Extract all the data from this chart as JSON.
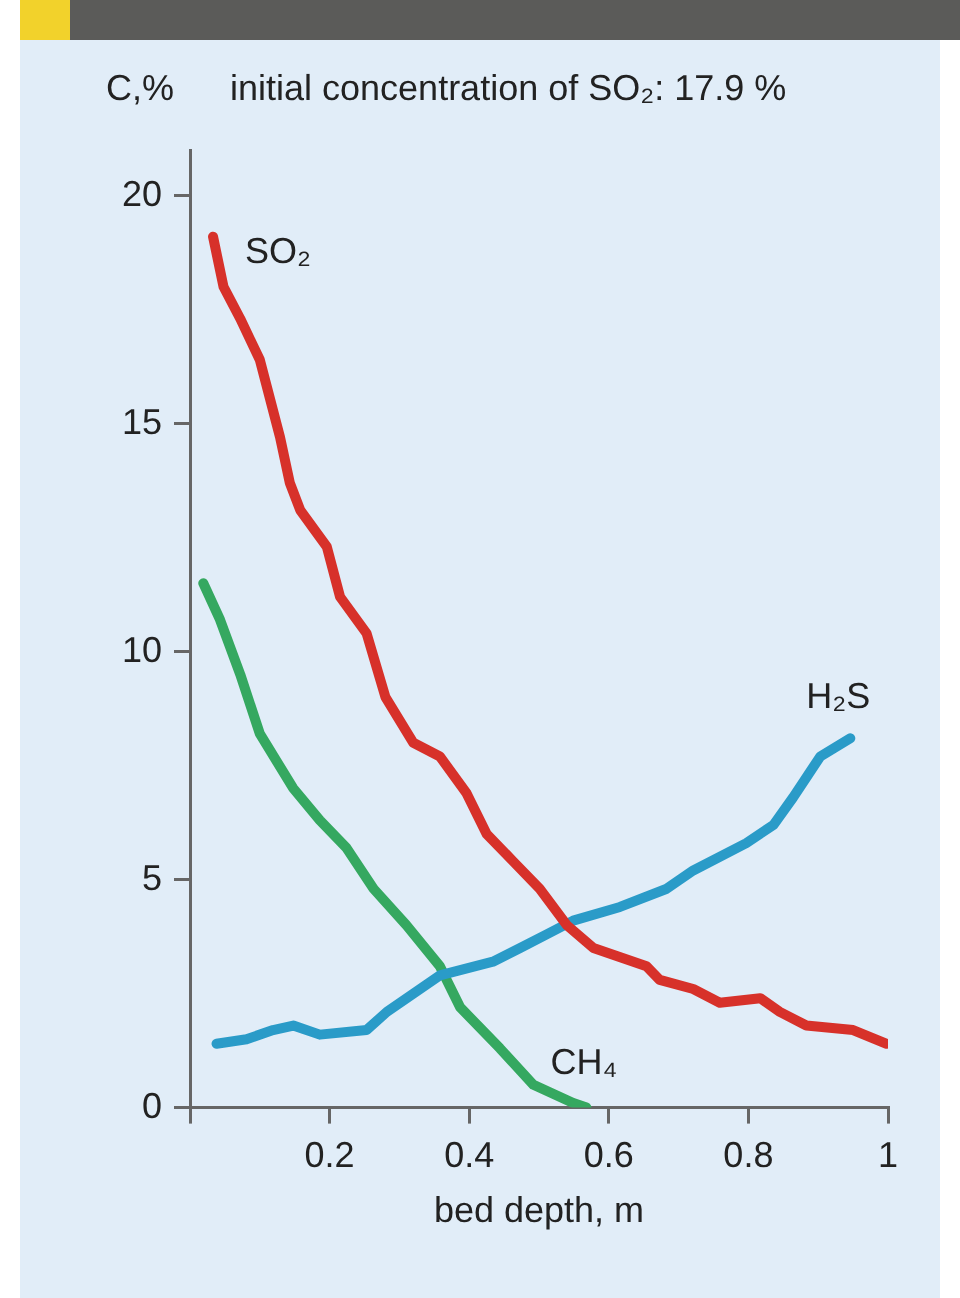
{
  "chart_data": {
    "type": "line",
    "xlabel": "bed depth, m",
    "ylabel": "C,%",
    "annotations": [
      "initial concentration of SO₂: 17.9 %"
    ],
    "xlim": [
      0,
      1
    ],
    "ylim": [
      0,
      21
    ],
    "xticks": [
      {
        "value": 0,
        "label": null
      },
      0.2,
      0.4,
      0.6,
      0.8,
      1
    ],
    "yticks": [
      0,
      5,
      10,
      15,
      20
    ],
    "grid": false,
    "legend": false,
    "marker": "none",
    "line_style": "solid",
    "series": [
      {
        "name": "SO₂",
        "color": "#d7312a",
        "x": [
          0.033,
          0.048,
          0.072,
          0.1,
          0.129,
          0.143,
          0.158,
          0.196,
          0.215,
          0.253,
          0.28,
          0.32,
          0.358,
          0.396,
          0.425,
          0.463,
          0.501,
          0.54,
          0.578,
          0.654,
          0.673,
          0.721,
          0.759,
          0.817,
          0.845,
          0.883,
          0.95,
          0.998
        ],
        "values": [
          19.1,
          18.0,
          17.3,
          16.4,
          14.7,
          13.7,
          13.1,
          12.3,
          11.2,
          10.4,
          9.0,
          8.0,
          7.7,
          6.9,
          6.0,
          5.4,
          4.8,
          4.0,
          3.5,
          3.1,
          2.8,
          2.6,
          2.3,
          2.4,
          2.1,
          1.8,
          1.7,
          1.4
        ]
      },
      {
        "name": "H₂S",
        "color": "#2a9bc8",
        "x": [
          0.038,
          0.081,
          0.119,
          0.148,
          0.186,
          0.253,
          0.282,
          0.32,
          0.358,
          0.434,
          0.473,
          0.511,
          0.549,
          0.616,
          0.683,
          0.721,
          0.797,
          0.836,
          0.864,
          0.903,
          0.946
        ],
        "values": [
          1.4,
          1.5,
          1.7,
          1.8,
          1.6,
          1.7,
          2.1,
          2.5,
          2.9,
          3.2,
          3.5,
          3.8,
          4.1,
          4.4,
          4.8,
          5.2,
          5.8,
          6.2,
          6.8,
          7.7,
          8.1
        ]
      },
      {
        "name": "CH₄",
        "color": "#35a860",
        "x": [
          0.019,
          0.043,
          0.072,
          0.1,
          0.148,
          0.186,
          0.224,
          0.263,
          0.31,
          0.358,
          0.387,
          0.444,
          0.492,
          0.549,
          0.568
        ],
        "values": [
          11.5,
          10.7,
          9.5,
          8.2,
          7.0,
          6.3,
          5.7,
          4.8,
          4.0,
          3.1,
          2.2,
          1.3,
          0.5,
          0.1,
          0
        ]
      }
    ]
  }
}
